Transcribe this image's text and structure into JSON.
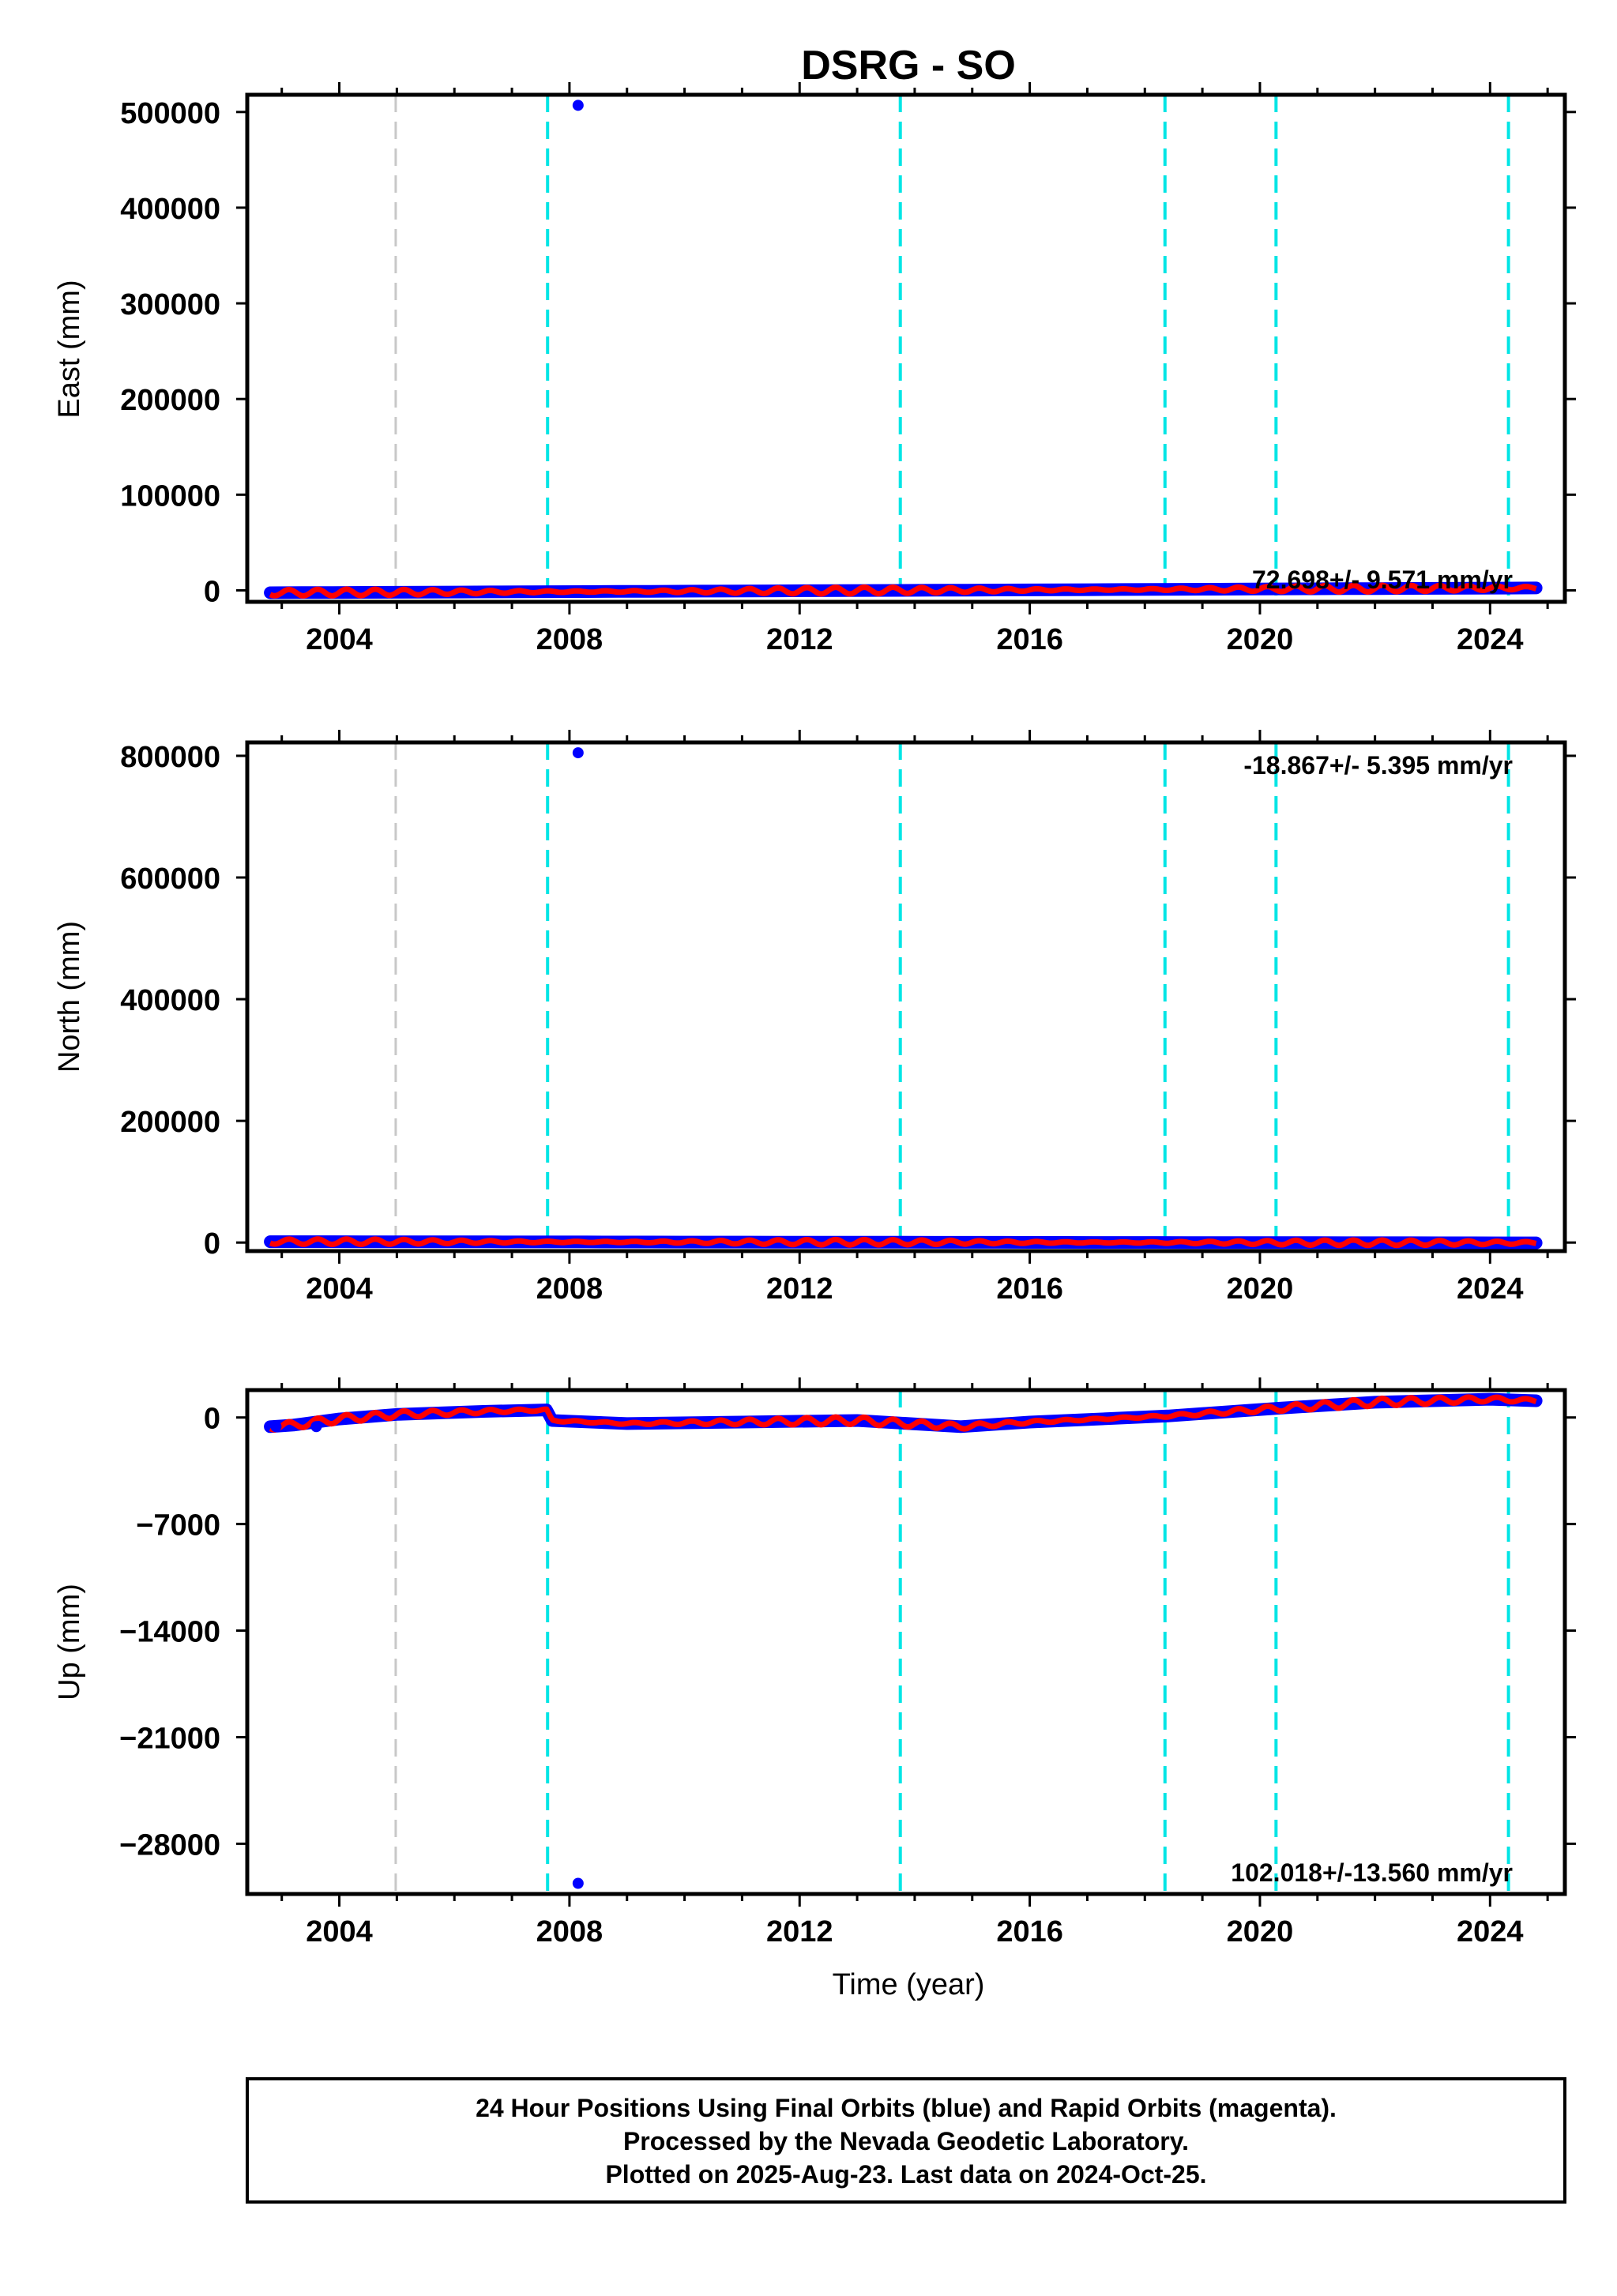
{
  "title": "DSRG - SO",
  "xlabel": "Time (year)",
  "footer": {
    "lines": [
      "24 Hour Positions Using Final Orbits (blue) and Rapid Orbits (magenta).",
      "Processed by the Nevada Geodetic Laboratory.",
      "Plotted on 2025-Aug-23. Last data on 2024-Oct-25."
    ]
  },
  "colors": {
    "final_orbits": "#0000ff",
    "model_fit": "#ff0000",
    "equipment_change": "#00e5e5",
    "other_event": "#c8c8c8",
    "frame": "#000000"
  },
  "chart_data": [
    {
      "type": "scatter",
      "name": "east",
      "ylabel": "East (mm)",
      "rate_label": "72.698+/- 9.571 mm/yr",
      "xlim": [
        2002.4,
        2025.3
      ],
      "ylim": [
        -12000,
        518000
      ],
      "xticks": [
        2004,
        2008,
        2012,
        2016,
        2020,
        2024
      ],
      "yticks": [
        0,
        100000,
        200000,
        300000,
        400000,
        500000
      ],
      "outliers": [
        {
          "x": 2008.15,
          "y": 507000
        }
      ],
      "fit_start": 2002.8,
      "fit_end": 2024.8,
      "trend": [
        -2500,
        2500
      ],
      "wiggle": 3500
    },
    {
      "type": "scatter",
      "name": "north",
      "ylabel": "North (mm)",
      "rate_label": "-18.867+/- 5.395 mm/yr",
      "xlim": [
        2002.4,
        2025.3
      ],
      "ylim": [
        -14000,
        822000
      ],
      "xticks": [
        2004,
        2008,
        2012,
        2016,
        2020,
        2024
      ],
      "yticks": [
        0,
        200000,
        400000,
        600000,
        800000
      ],
      "outliers": [
        {
          "x": 2008.15,
          "y": 805000
        }
      ],
      "fit_start": 2002.8,
      "fit_end": 2024.8,
      "trend": [
        1500,
        -500
      ],
      "wiggle": 4500
    },
    {
      "type": "scatter",
      "name": "up",
      "ylabel": "Up (mm)",
      "rate_label": "102.018+/-13.560 mm/yr",
      "xlim": [
        2002.4,
        2025.3
      ],
      "ylim": [
        -31300,
        1800
      ],
      "xticks": [
        2004,
        2008,
        2012,
        2016,
        2020,
        2024
      ],
      "yticks": [
        0,
        -7000,
        -14000,
        -21000,
        -28000
      ],
      "ytick_labels": [
        "0",
        "−7000",
        "−14000",
        "−21000",
        "−28000"
      ],
      "outliers": [
        {
          "x": 2008.15,
          "y": -30600
        },
        {
          "x": 2002.9,
          "y": -600
        },
        {
          "x": 2003.6,
          "y": -600
        }
      ],
      "series_points": [
        {
          "x": 2002.8,
          "y": -600
        },
        {
          "x": 2003.2,
          "y": -500
        },
        {
          "x": 2004.0,
          "y": -100
        },
        {
          "x": 2005.0,
          "y": 200
        },
        {
          "x": 2006.5,
          "y": 400
        },
        {
          "x": 2007.6,
          "y": 500
        },
        {
          "x": 2007.7,
          "y": -200
        },
        {
          "x": 2009.0,
          "y": -400
        },
        {
          "x": 2011.0,
          "y": -300
        },
        {
          "x": 2013.0,
          "y": -200
        },
        {
          "x": 2014.8,
          "y": -600
        },
        {
          "x": 2016.0,
          "y": -300
        },
        {
          "x": 2018.4,
          "y": 100
        },
        {
          "x": 2020.3,
          "y": 600
        },
        {
          "x": 2022.0,
          "y": 1000
        },
        {
          "x": 2024.0,
          "y": 1200
        },
        {
          "x": 2024.8,
          "y": 1100
        }
      ],
      "fit_start": 2002.8,
      "fit_end": 2024.8,
      "wiggle": 250
    }
  ],
  "event_lines": {
    "equipment_change": [
      2007.62,
      2013.75,
      2018.35,
      2020.28,
      2024.32
    ],
    "other_event": [
      2004.98
    ]
  }
}
